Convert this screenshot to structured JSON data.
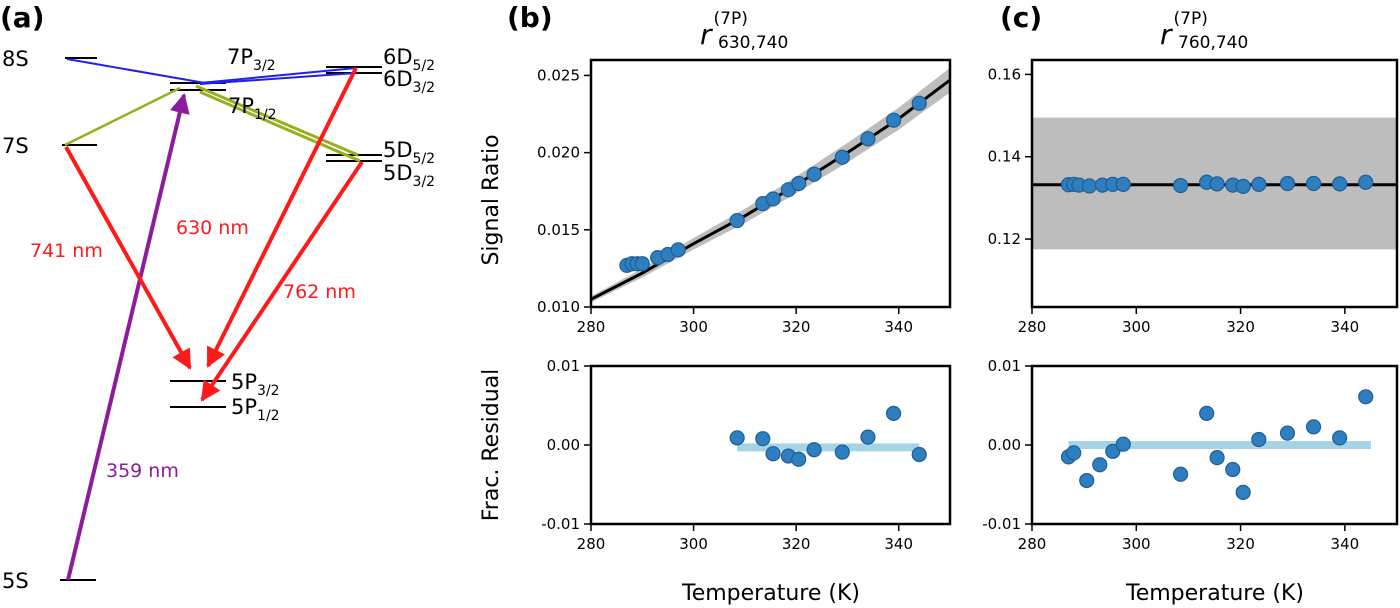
{
  "panels": {
    "a": "(a)",
    "b": "(b)",
    "c": "(c)"
  },
  "levels": {
    "s8": "8S",
    "s7": "7S",
    "s5": "5S",
    "p7_32": {
      "main": "7P",
      "sub": "3/2"
    },
    "p7_12": {
      "main": "7P",
      "sub": "1/2"
    },
    "d6_52": {
      "main": "6D",
      "sub": "5/2"
    },
    "d6_32": {
      "main": "6D",
      "sub": "3/2"
    },
    "d5_52": {
      "main": "5D",
      "sub": "5/2"
    },
    "d5_32": {
      "main": "5D",
      "sub": "3/2"
    },
    "p5_32": {
      "main": "5P",
      "sub": "3/2"
    },
    "p5_12": {
      "main": "5P",
      "sub": "1/2"
    }
  },
  "wavelengths": {
    "w741": "741 nm",
    "w630": "630 nm",
    "w762": "762 nm",
    "w359": "359 nm"
  },
  "colors": {
    "red": "#ff1a1a",
    "purple": "#8e1a9c",
    "blue": "#2020e8",
    "olive": "#9aae1c",
    "marker": "#2f7ec0",
    "band": "#bdbdbd",
    "residual_band": "#a7d3e6"
  },
  "axes": {
    "xlabel": "Temperature (K)",
    "ylabel_top": "Signal Ratio",
    "ylabel_bottom": "Frac.  Residual"
  },
  "titles": {
    "b": {
      "r": "r",
      "sup": "(7P)",
      "sub": "630,740"
    },
    "c": {
      "r": "r",
      "sup": "(7P)",
      "sub": "760,740"
    }
  },
  "ticks": {
    "x": [
      "280",
      "300",
      "320",
      "340"
    ],
    "b_top_y": [
      "0.010",
      "0.015",
      "0.020",
      "0.025"
    ],
    "c_top_y": [
      "0.12",
      "0.14",
      "0.16"
    ],
    "res_y": [
      "-0.01",
      "0.00",
      "0.01"
    ]
  },
  "chart_data": [
    {
      "panel": "b-top",
      "type": "scatter",
      "xlim": [
        280,
        350
      ],
      "ylim": [
        0.01,
        0.026
      ],
      "x": [
        287,
        288,
        289,
        290,
        293,
        295,
        297,
        308.5,
        313.5,
        315.5,
        318.5,
        320.5,
        323.5,
        329,
        334,
        339,
        344
      ],
      "y": [
        0.0127,
        0.0128,
        0.0128,
        0.0128,
        0.0132,
        0.0134,
        0.0137,
        0.0156,
        0.0167,
        0.017,
        0.0176,
        0.018,
        0.0186,
        0.0197,
        0.0209,
        0.0221,
        0.0232
      ],
      "fit_curve": {
        "x": [
          280,
          290,
          300,
          310,
          320,
          330,
          340,
          350
        ],
        "y": [
          0.0105,
          0.0122,
          0.0141,
          0.0159,
          0.0179,
          0.02,
          0.0222,
          0.0247
        ]
      },
      "grid": false
    },
    {
      "panel": "b-bottom",
      "type": "scatter",
      "xlim": [
        280,
        350
      ],
      "ylim": [
        -0.01,
        0.01
      ],
      "x": [
        308.5,
        313.5,
        315.5,
        318.5,
        320.5,
        323.5,
        329,
        334,
        339,
        344
      ],
      "y": [
        0.0009,
        0.0008,
        -0.0011,
        -0.0014,
        -0.0018,
        -0.0006,
        -0.0009,
        0.001,
        0.004,
        -0.0012
      ],
      "band": {
        "x": [
          308.5,
          344
        ],
        "y": [
          -0.0002,
          0.0002
        ]
      },
      "grid": false
    },
    {
      "panel": "c-top",
      "type": "scatter",
      "xlim": [
        280,
        350
      ],
      "ylim": [
        0.1035,
        0.1635
      ],
      "x": [
        287,
        288,
        289,
        291,
        293.5,
        295.5,
        297.5,
        308.5,
        313.5,
        315.5,
        318.5,
        320.5,
        323.5,
        329,
        334,
        339,
        344
      ],
      "y": [
        0.1332,
        0.1333,
        0.1331,
        0.1329,
        0.1331,
        0.1333,
        0.1333,
        0.133,
        0.1338,
        0.1334,
        0.1331,
        0.1328,
        0.1333,
        0.1335,
        0.1335,
        0.1334,
        0.1338
      ],
      "fit_line": 0.1332,
      "band": [
        0.1175,
        0.1495
      ],
      "grid": false
    },
    {
      "panel": "c-bottom",
      "type": "scatter",
      "xlim": [
        280,
        350
      ],
      "ylim": [
        -0.01,
        0.01
      ],
      "x": [
        287,
        288,
        290.5,
        293,
        295.5,
        297.5,
        308.5,
        313.5,
        315.5,
        318.5,
        320.5,
        323.5,
        329,
        334,
        339,
        344
      ],
      "y": [
        -0.0015,
        -0.001,
        -0.0045,
        -0.0025,
        -0.0008,
        0.0001,
        -0.0037,
        0.004,
        -0.0016,
        -0.0031,
        -0.006,
        0.0007,
        0.0015,
        0.0023,
        0.0009,
        0.0061
      ],
      "band": {
        "x": [
          287,
          345
        ],
        "y": [
          -0.0002,
          0.0005
        ]
      },
      "grid": false
    }
  ]
}
